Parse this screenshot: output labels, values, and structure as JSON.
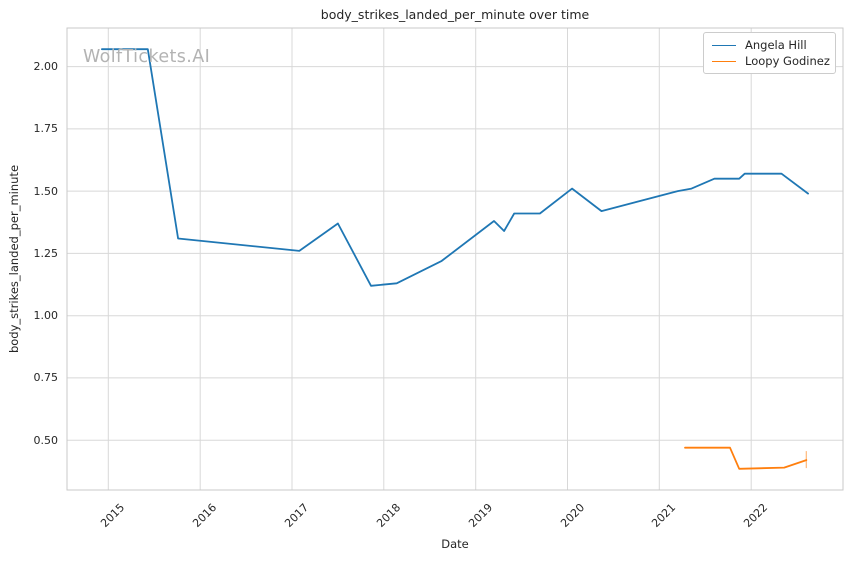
{
  "figure": {
    "watermark": "WolfTickets.AI",
    "background": "#ffffff"
  },
  "chart_data": {
    "type": "line",
    "title": "body_strikes_landed_per_minute over time",
    "xlabel": "Date",
    "ylabel": "body_strikes_landed_per_minute",
    "xlim": [
      2014.55,
      2023.0
    ],
    "ylim": [
      0.3,
      2.155
    ],
    "xticks": [
      2015,
      2016,
      2017,
      2018,
      2019,
      2020,
      2021,
      2022
    ],
    "xtick_labels": [
      "2015",
      "2016",
      "2017",
      "2018",
      "2019",
      "2020",
      "2021",
      "2022"
    ],
    "yticks": [
      0.5,
      0.75,
      1.0,
      1.25,
      1.5,
      1.75,
      2.0
    ],
    "ytick_labels": [
      "0.50",
      "0.75",
      "1.00",
      "1.25",
      "1.50",
      "1.75",
      "2.00"
    ],
    "grid": true,
    "legend": {
      "position": "upper right",
      "entries": [
        "Angela Hill",
        "Loopy Godinez"
      ]
    },
    "colors": {
      "angela_hill": "#1f77b4",
      "loopy_godinez": "#ff7f0e",
      "grid": "#d8d8d8",
      "spine": "#c9c9c9",
      "text": "#262626",
      "watermark": "#b3b3b3"
    },
    "series": [
      {
        "name": "Angela Hill",
        "color": "#1f77b4",
        "x": [
          2014.93,
          2015.43,
          2015.76,
          2017.08,
          2017.5,
          2017.86,
          2018.14,
          2018.63,
          2019.2,
          2019.31,
          2019.42,
          2019.7,
          2020.05,
          2020.37,
          2021.2,
          2021.35,
          2021.6,
          2021.87,
          2021.93,
          2022.33,
          2022.62
        ],
        "y": [
          2.07,
          2.07,
          1.31,
          1.26,
          1.37,
          1.12,
          1.13,
          1.22,
          1.38,
          1.34,
          1.41,
          1.41,
          1.51,
          1.42,
          1.5,
          1.51,
          1.55,
          1.55,
          1.57,
          1.57,
          1.49
        ],
        "end_tick": false
      },
      {
        "name": "Loopy Godinez",
        "color": "#ff7f0e",
        "x": [
          2021.28,
          2021.77,
          2021.87,
          2022.36,
          2022.6
        ],
        "y": [
          0.47,
          0.47,
          0.385,
          0.39,
          0.42
        ],
        "end_tick": true
      }
    ]
  }
}
